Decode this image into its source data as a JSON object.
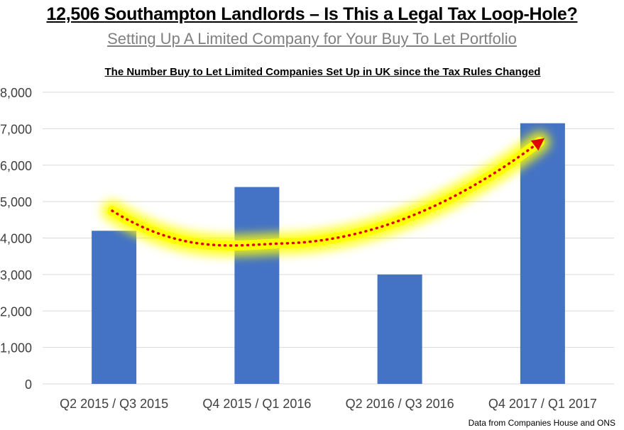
{
  "header": {
    "headline": "12,506 Southampton Landlords – Is This a Legal Tax Loop-Hole?",
    "subheadline": "Setting Up A Limited Company for Your Buy To Let Portfolio"
  },
  "footer": {
    "source": "Data from Companies House and ONS"
  },
  "colors": {
    "bar": "#4472c4",
    "grid": "#d9d9d9",
    "trend_dots": "#e00000",
    "trend_glow": "#ffff00"
  },
  "chart_data": {
    "type": "bar",
    "title": "The Number Buy to Let Limited Companies Set Up in UK since the Tax Rules Changed",
    "categories": [
      "Q2 2015 / Q3 2015",
      "Q4 2015 / Q1 2016",
      "Q2 2016 / Q3 2016",
      "Q4 2017 / Q1 2017"
    ],
    "values": [
      4200,
      5400,
      3000,
      7150
    ],
    "ylim": [
      0,
      8000
    ],
    "yticks": [
      0,
      1000,
      2000,
      3000,
      4000,
      5000,
      6000,
      7000,
      8000
    ],
    "ytick_labels": [
      "0",
      "1,000",
      "2,000",
      "3,000",
      "4,000",
      "5,000",
      "6,000",
      "7,000",
      "8,000"
    ],
    "grid": true,
    "annotation": "red dotted upward-trend arrow with yellow glow"
  }
}
